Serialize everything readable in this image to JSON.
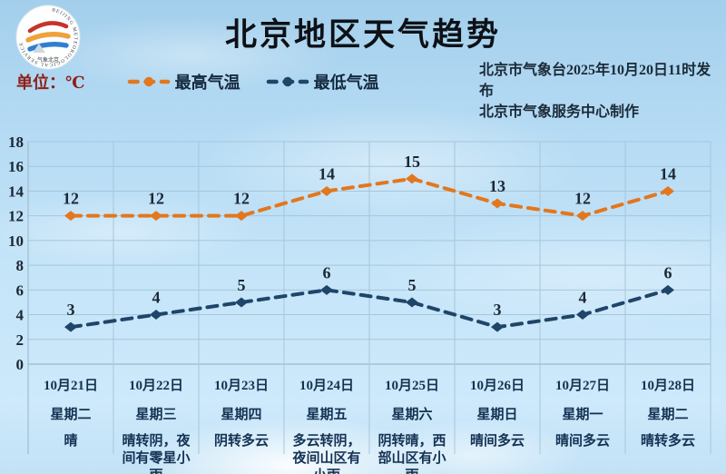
{
  "header": {
    "logo": {
      "ring_text": "BEIJING METEOROLOGICAL SERVICE",
      "label": "气象北京"
    },
    "title": "北京地区天气趋势",
    "release_line1": "北京市气象台2025年10月20日11时发布",
    "release_line2": "北京市气象服务中心制作"
  },
  "legend": {
    "unit_label": "单位：℃"
  },
  "chart_data": {
    "type": "line",
    "title": "北京地区天气趋势",
    "categories": [
      "10月21日",
      "10月22日",
      "10月23日",
      "10月24日",
      "10月25日",
      "10月26日",
      "10月27日",
      "10月28日"
    ],
    "series": [
      {
        "name": "最高气温",
        "color": "#e2771e",
        "values": [
          12,
          12,
          12,
          14,
          15,
          13,
          12,
          14
        ]
      },
      {
        "name": "最低气温",
        "color": "#1f4569",
        "values": [
          3,
          4,
          5,
          6,
          5,
          3,
          4,
          6
        ]
      }
    ],
    "unit": "℃",
    "ylim": [
      0,
      18
    ],
    "ytick_step": 2,
    "grid": true,
    "line_style": "dashed",
    "marker": "diamond",
    "legend_position": "top-left"
  },
  "forecast_days": [
    {
      "date": "10月21日",
      "weekday": "星期二",
      "weather": "晴"
    },
    {
      "date": "10月22日",
      "weekday": "星期三",
      "weather": "晴转阴，夜间有零星小雨"
    },
    {
      "date": "10月23日",
      "weekday": "星期四",
      "weather": "阴转多云"
    },
    {
      "date": "10月24日",
      "weekday": "星期五",
      "weather": "多云转阴，夜间山区有小雨"
    },
    {
      "date": "10月25日",
      "weekday": "星期六",
      "weather": "阴转晴，西部山区有小雨"
    },
    {
      "date": "10月26日",
      "weekday": "星期日",
      "weather": "晴间多云"
    },
    {
      "date": "10月27日",
      "weekday": "星期一",
      "weather": "晴间多云"
    },
    {
      "date": "10月28日",
      "weekday": "星期二",
      "weather": "晴转多云"
    }
  ]
}
